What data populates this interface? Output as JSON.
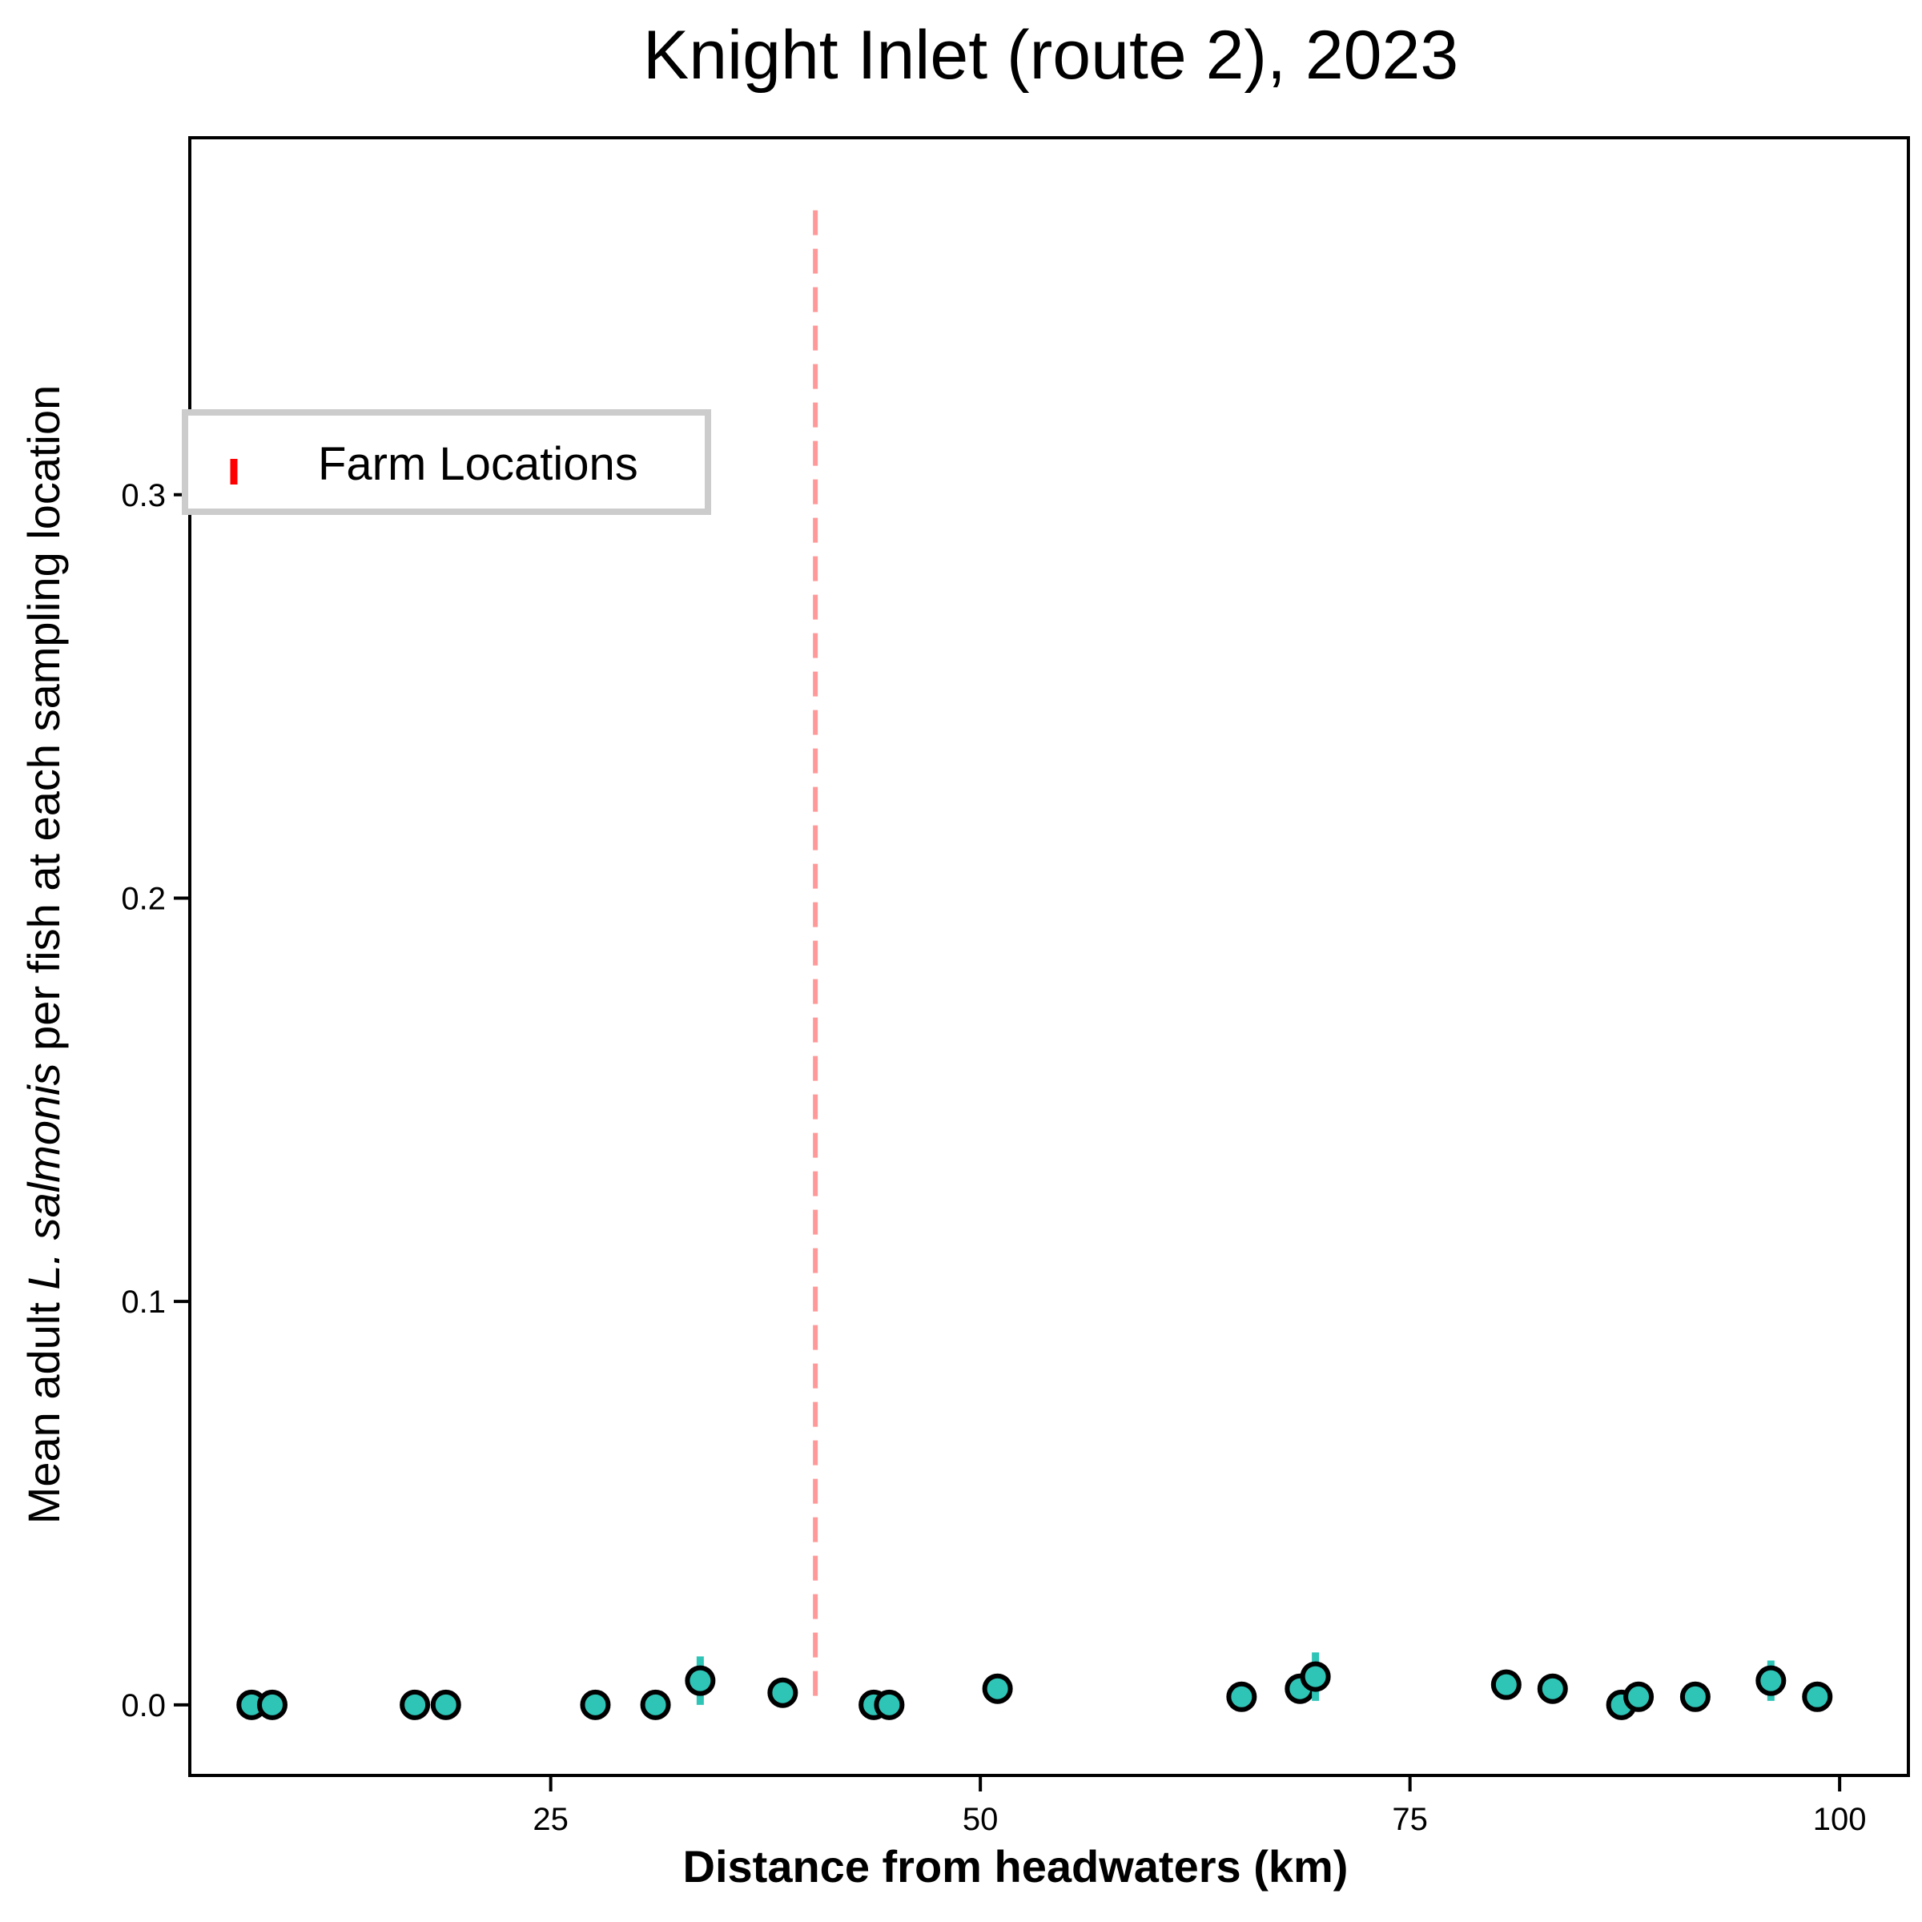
{
  "chart_data": {
    "type": "scatter",
    "title": "Knight Inlet (route 2), 2023",
    "xlabel": "Distance from headwaters (km)",
    "ylabel": {
      "before": "Mean adult ",
      "italic": "L. salmonis",
      "after": " per fish at each sampling location"
    },
    "xlim": [
      4,
      104
    ],
    "ylim": [
      -0.0175,
      0.3885
    ],
    "x_ticks": [
      25,
      50,
      75,
      100
    ],
    "y_ticks": [
      0.0,
      0.1,
      0.2,
      0.3
    ],
    "x_tick_labels": [
      "25",
      "50",
      "75",
      "100"
    ],
    "y_tick_labels": [
      "0.0",
      "0.1",
      "0.2",
      "0.3"
    ],
    "grid": false,
    "legend": {
      "placement": "upper-left",
      "entries": [
        {
          "label": "Farm Locations",
          "color": "#ff0000"
        }
      ]
    },
    "farm_locations": [
      {
        "x": 40.4,
        "y_range": [
          0.0,
          0.3705
        ],
        "color": "#ff9999",
        "style": "dashed"
      }
    ],
    "series": [
      {
        "marker_color": "#2ec4b6",
        "edge_color": "#000000",
        "error_color": "#2ec4b6",
        "points": [
          {
            "x": 7.6,
            "y": 0.0,
            "err": 0.0
          },
          {
            "x": 8.8,
            "y": 0.0,
            "err": 0.0
          },
          {
            "x": 17.1,
            "y": 0.0,
            "err": 0.0
          },
          {
            "x": 18.9,
            "y": 0.0,
            "err": 0.0
          },
          {
            "x": 27.6,
            "y": 0.0,
            "err": 0.0
          },
          {
            "x": 31.1,
            "y": 0.0,
            "err": 0.0
          },
          {
            "x": 33.7,
            "y": 0.006,
            "err": 0.006
          },
          {
            "x": 38.5,
            "y": 0.003,
            "err": 0.0
          },
          {
            "x": 43.8,
            "y": 0.0,
            "err": 0.0
          },
          {
            "x": 44.7,
            "y": 0.0,
            "err": 0.0
          },
          {
            "x": 51.0,
            "y": 0.004,
            "err": 0.0
          },
          {
            "x": 65.2,
            "y": 0.002,
            "err": 0.0
          },
          {
            "x": 68.6,
            "y": 0.004,
            "err": 0.0
          },
          {
            "x": 69.5,
            "y": 0.007,
            "err": 0.006
          },
          {
            "x": 80.6,
            "y": 0.005,
            "err": 0.0
          },
          {
            "x": 83.3,
            "y": 0.004,
            "err": 0.0
          },
          {
            "x": 87.3,
            "y": 0.0,
            "err": 0.0
          },
          {
            "x": 88.3,
            "y": 0.002,
            "err": 0.0
          },
          {
            "x": 91.6,
            "y": 0.002,
            "err": 0.0
          },
          {
            "x": 96.0,
            "y": 0.006,
            "err": 0.005
          },
          {
            "x": 98.7,
            "y": 0.002,
            "err": 0.0
          }
        ]
      }
    ]
  }
}
